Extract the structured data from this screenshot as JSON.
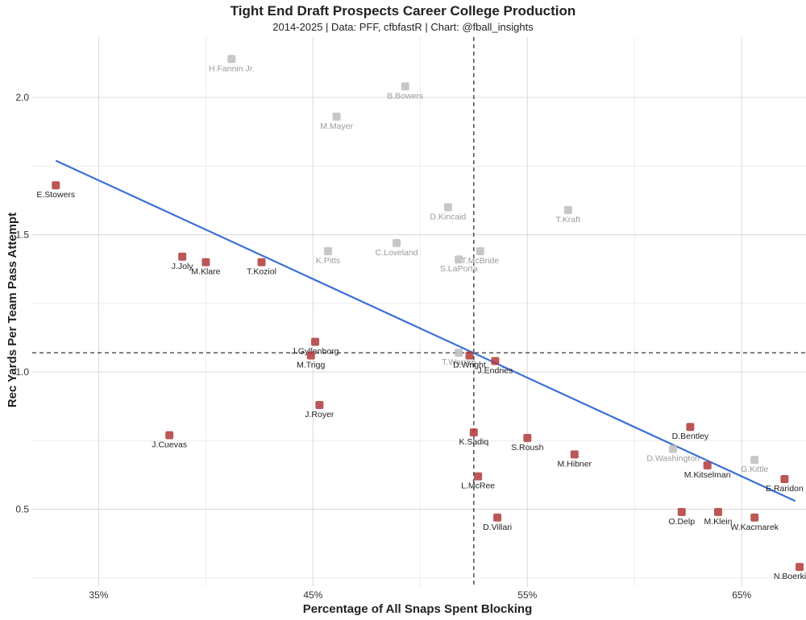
{
  "chart_data": {
    "type": "scatter",
    "title": "Tight End Draft Prospects Career College Production",
    "subtitle": "2014-2025 | Data: PFF, cfbfastR | Chart: @fball_insights",
    "xlabel": "Percentage of All Snaps Spent Blocking",
    "ylabel": "Rec Yards Per Team Pass Attempt",
    "xlim": [
      31.9,
      68.0
    ],
    "ylim": [
      0.22,
      2.22
    ],
    "x_ticks": [
      35,
      45,
      55,
      65
    ],
    "x_tick_labels": [
      "35%",
      "45%",
      "55%",
      "65%"
    ],
    "y_ticks": [
      0.5,
      1.0,
      1.5,
      2.0
    ],
    "y_tick_labels": [
      "0.5",
      "1.0",
      "1.5",
      "2.0"
    ],
    "grid": true,
    "reference_lines": {
      "x": 52.5,
      "y": 1.07,
      "style": "dashed"
    },
    "trend_line": {
      "x": [
        33.0,
        67.5
      ],
      "y": [
        1.77,
        0.53
      ],
      "color": "#3b6fd8"
    },
    "colors": {
      "current": "#222222",
      "past": "#9a9a9a"
    },
    "points": [
      {
        "name": "H.Fannin Jr.",
        "x": 41.2,
        "y": 2.14,
        "past": true
      },
      {
        "name": "B.Bowers",
        "x": 49.3,
        "y": 2.04,
        "past": true
      },
      {
        "name": "M.Mayer",
        "x": 46.1,
        "y": 1.93,
        "past": true
      },
      {
        "name": "E.Stowers",
        "x": 33.0,
        "y": 1.68,
        "past": false
      },
      {
        "name": "D.Kincaid",
        "x": 51.3,
        "y": 1.6,
        "past": true
      },
      {
        "name": "T.Kraft",
        "x": 56.9,
        "y": 1.59,
        "past": true
      },
      {
        "name": "C.Loveland",
        "x": 48.9,
        "y": 1.47,
        "past": true
      },
      {
        "name": "K.Pitts",
        "x": 45.7,
        "y": 1.44,
        "past": true
      },
      {
        "name": "T.McBride",
        "x": 52.8,
        "y": 1.44,
        "past": true
      },
      {
        "name": "S.LaPorta",
        "x": 51.8,
        "y": 1.41,
        "past": true
      },
      {
        "name": "J.Joly",
        "x": 38.9,
        "y": 1.42,
        "past": false
      },
      {
        "name": "M.Klare",
        "x": 40.0,
        "y": 1.4,
        "past": false
      },
      {
        "name": "T.Koziol",
        "x": 42.6,
        "y": 1.4,
        "past": false
      },
      {
        "name": "J.Gyllenborg",
        "x": 45.1,
        "y": 1.11,
        "past": false
      },
      {
        "name": "M.Trigg",
        "x": 44.9,
        "y": 1.06,
        "past": false
      },
      {
        "name": "T.Warren",
        "x": 51.8,
        "y": 1.07,
        "past": true
      },
      {
        "name": "D.Wright",
        "x": 52.3,
        "y": 1.06,
        "past": false
      },
      {
        "name": "J.Endries",
        "x": 53.5,
        "y": 1.04,
        "past": false
      },
      {
        "name": "J.Royer",
        "x": 45.3,
        "y": 0.88,
        "past": false
      },
      {
        "name": "J.Cuevas",
        "x": 38.3,
        "y": 0.77,
        "past": false
      },
      {
        "name": "K.Sadiq",
        "x": 52.5,
        "y": 0.78,
        "past": false
      },
      {
        "name": "S.Roush",
        "x": 55.0,
        "y": 0.76,
        "past": false
      },
      {
        "name": "M.Hibner",
        "x": 57.2,
        "y": 0.7,
        "past": false
      },
      {
        "name": "D.Bentley",
        "x": 62.6,
        "y": 0.8,
        "past": false
      },
      {
        "name": "D.Washington",
        "x": 61.8,
        "y": 0.72,
        "past": true
      },
      {
        "name": "G.Kittle",
        "x": 65.6,
        "y": 0.68,
        "past": true
      },
      {
        "name": "M.Kitselman",
        "x": 63.4,
        "y": 0.66,
        "past": false
      },
      {
        "name": "E.Raridon",
        "x": 67.0,
        "y": 0.61,
        "past": false
      },
      {
        "name": "L.McRee",
        "x": 52.7,
        "y": 0.62,
        "past": false
      },
      {
        "name": "O.Delp",
        "x": 62.2,
        "y": 0.49,
        "past": false
      },
      {
        "name": "M.Klein",
        "x": 63.9,
        "y": 0.49,
        "past": false
      },
      {
        "name": "W.Kacmarek",
        "x": 65.6,
        "y": 0.47,
        "past": false
      },
      {
        "name": "D.Villari",
        "x": 53.6,
        "y": 0.47,
        "past": false
      },
      {
        "name": "N.Boerkircher",
        "x": 67.7,
        "y": 0.29,
        "past": false
      }
    ]
  }
}
